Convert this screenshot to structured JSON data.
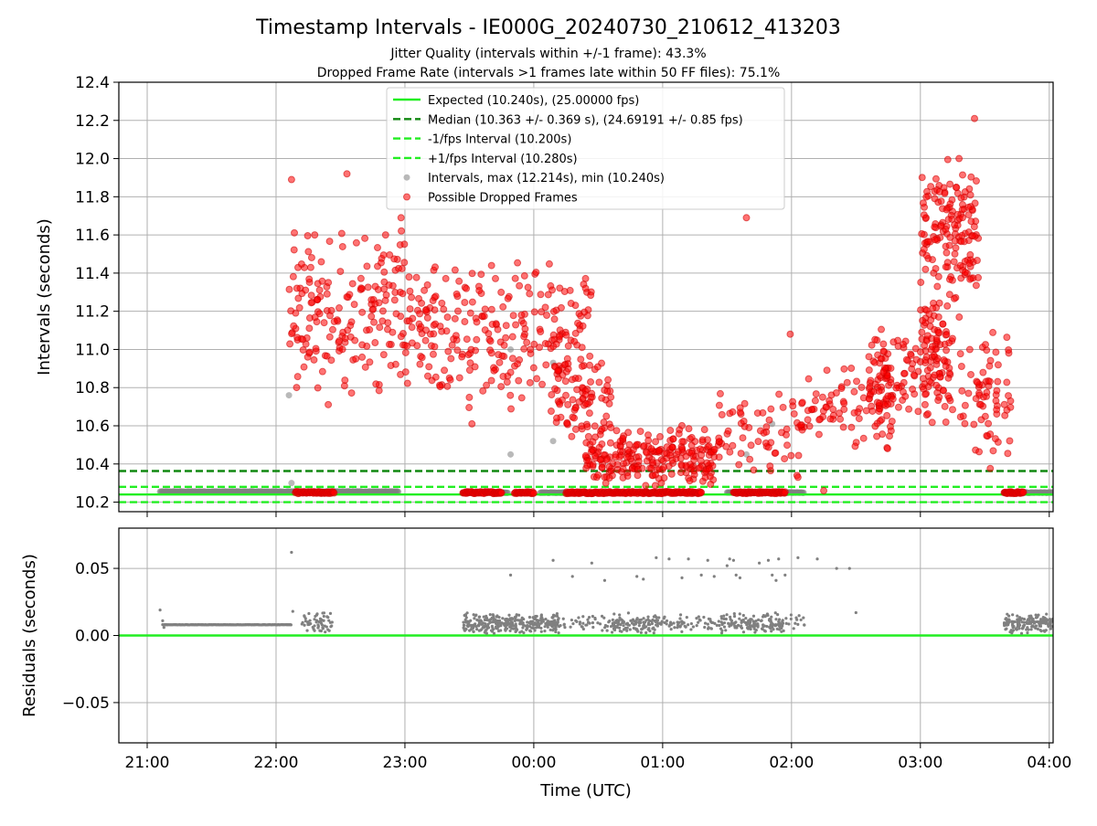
{
  "title": "Timestamp Intervals - IE000G_20240730_210612_413203",
  "subtitle_1": "Jitter Quality (intervals within +/-1 frame): 43.3%",
  "subtitle_2": "Dropped Frame Rate (intervals >1 frames late within 50 FF files): 75.1%",
  "colors": {
    "expected": "#22ee22",
    "median": "#118811",
    "interval_points": "#808080",
    "dropped_points": "#ff0000",
    "grid": "#b0b0b0"
  },
  "chart_data": [
    {
      "type": "scatter",
      "panel": "top",
      "xlabel": "",
      "ylabel": "Intervals (seconds)",
      "x_unit": "hours after 21:00 UTC",
      "xlim": [
        -0.22,
        7.03
      ],
      "ylim": [
        10.15,
        12.4
      ],
      "yticks": [
        "10.2",
        "10.4",
        "10.6",
        "10.8",
        "11.0",
        "11.2",
        "11.4",
        "11.6",
        "11.8",
        "12.0",
        "12.2",
        "12.4"
      ],
      "grid": true,
      "legend_position": "top-center",
      "reference_lines": [
        {
          "name": "Expected (10.240s), (25.00000 fps)",
          "y": 10.24,
          "style": "solid",
          "color": "#22ee22"
        },
        {
          "name": "Median (10.363 +/- 0.369 s), (24.69191 +/- 0.85 fps)",
          "y": 10.363,
          "style": "dashed",
          "color": "#118811"
        },
        {
          "name": "-1/fps Interval (10.200s)",
          "y": 10.2,
          "style": "dashed",
          "color": "#22ee22"
        },
        {
          "name": "+1/fps Interval (10.280s)",
          "y": 10.28,
          "style": "dashed",
          "color": "#22ee22"
        }
      ],
      "series": [
        {
          "name": "Intervals, max (12.214s), min (10.240s)",
          "color": "#808080",
          "baseline_segments": [
            {
              "x_start": 0.1,
              "x_end": 1.95,
              "y": 10.255
            },
            {
              "x_start": 2.45,
              "x_end": 2.8,
              "y": 10.25
            },
            {
              "x_start": 3.05,
              "x_end": 3.4,
              "y": 10.25
            },
            {
              "x_start": 4.5,
              "x_end": 5.1,
              "y": 10.25
            },
            {
              "x_start": 6.65,
              "x_end": 7.03,
              "y": 10.25
            }
          ],
          "points": [
            [
              1.1,
              10.76
            ],
            [
              1.12,
              10.3
            ],
            [
              2.82,
              11.0
            ],
            [
              2.82,
              10.45
            ],
            [
              3.15,
              10.93
            ],
            [
              3.15,
              10.52
            ],
            [
              4.65,
              10.45
            ],
            [
              4.85,
              10.61
            ]
          ]
        },
        {
          "name": "Possible Dropped Frames",
          "color": "#ff0000",
          "clusters": [
            {
              "x_start": 1.1,
              "x_end": 2.0,
              "y_min": 10.7,
              "y_max": 11.7,
              "n": 180
            },
            {
              "x_start": 2.0,
              "x_end": 3.45,
              "y_min": 10.65,
              "y_max": 11.5,
              "n": 260
            },
            {
              "x_start": 3.15,
              "x_end": 3.6,
              "y_min": 10.45,
              "y_max": 10.98,
              "n": 70
            },
            {
              "x_start": 3.4,
              "x_end": 4.4,
              "y_min": 10.25,
              "y_max": 10.62,
              "n": 240
            },
            {
              "x_start": 4.4,
              "x_end": 5.1,
              "y_min": 10.3,
              "y_max": 10.82,
              "n": 70
            },
            {
              "x_start": 5.1,
              "x_end": 5.8,
              "y_min": 10.45,
              "y_max": 10.95,
              "n": 80
            },
            {
              "x_start": 5.6,
              "x_end": 6.25,
              "y_min": 10.6,
              "y_max": 11.15,
              "n": 150
            },
            {
              "x_start": 6.0,
              "x_end": 6.25,
              "y_min": 10.9,
              "y_max": 11.3,
              "n": 40
            },
            {
              "x_start": 6.0,
              "x_end": 6.45,
              "y_min": 11.2,
              "y_max": 12.05,
              "n": 150
            },
            {
              "x_start": 6.3,
              "x_end": 6.7,
              "y_min": 10.35,
              "y_max": 11.2,
              "n": 70
            }
          ],
          "baseline_bands": [
            {
              "x_start": 1.15,
              "x_end": 1.45,
              "y": 10.25
            },
            {
              "x_start": 2.45,
              "x_end": 2.75,
              "y": 10.25
            },
            {
              "x_start": 2.85,
              "x_end": 3.0,
              "y": 10.25
            },
            {
              "x_start": 3.25,
              "x_end": 4.3,
              "y": 10.25
            },
            {
              "x_start": 4.55,
              "x_end": 4.95,
              "y": 10.25
            },
            {
              "x_start": 6.65,
              "x_end": 6.8,
              "y": 10.25
            }
          ],
          "points": [
            [
              1.12,
              11.89
            ],
            [
              1.3,
              11.6
            ],
            [
              1.55,
              11.92
            ],
            [
              1.85,
              11.6
            ],
            [
              1.97,
              11.69
            ],
            [
              2.52,
              10.61
            ],
            [
              4.65,
              11.69
            ],
            [
              6.42,
              12.21
            ],
            [
              6.3,
              12.0
            ],
            [
              4.99,
              11.08
            ],
            [
              5.05,
              10.33
            ],
            [
              5.25,
              10.26
            ]
          ]
        }
      ]
    },
    {
      "type": "scatter",
      "panel": "bottom",
      "xlabel": "Time (UTC)",
      "ylabel": "Residuals (seconds)",
      "x_unit": "hours after 21:00 UTC",
      "xlim": [
        -0.22,
        7.03
      ],
      "ylim": [
        -0.08,
        0.08
      ],
      "yticks": [
        "−0.05",
        "0.00",
        "0.05"
      ],
      "xticks": [
        "21:00",
        "22:00",
        "23:00",
        "00:00",
        "01:00",
        "02:00",
        "03:00",
        "04:00"
      ],
      "grid": true,
      "reference_lines": [
        {
          "y": 0.0,
          "style": "solid",
          "color": "#22ee22"
        }
      ],
      "series": [
        {
          "color": "#808080",
          "baseline_segments": [
            {
              "x_start": 0.12,
              "x_end": 1.12,
              "y": 0.008
            }
          ],
          "clusters": [
            {
              "x_start": 1.2,
              "x_end": 1.45,
              "y_min": 0.002,
              "y_max": 0.018,
              "n": 60
            },
            {
              "x_start": 2.45,
              "x_end": 3.2,
              "y_min": 0.001,
              "y_max": 0.017,
              "n": 320
            },
            {
              "x_start": 3.2,
              "x_end": 3.6,
              "y_min": 0.002,
              "y_max": 0.016,
              "n": 40
            },
            {
              "x_start": 3.6,
              "x_end": 4.0,
              "y_min": 0.001,
              "y_max": 0.017,
              "n": 120
            },
            {
              "x_start": 4.0,
              "x_end": 4.45,
              "y_min": 0.002,
              "y_max": 0.017,
              "n": 60
            },
            {
              "x_start": 4.45,
              "x_end": 4.95,
              "y_min": 0.001,
              "y_max": 0.017,
              "n": 160
            },
            {
              "x_start": 4.95,
              "x_end": 5.1,
              "y_min": 0.003,
              "y_max": 0.016,
              "n": 15
            },
            {
              "x_start": 6.65,
              "x_end": 7.03,
              "y_min": 0.001,
              "y_max": 0.017,
              "n": 170
            }
          ],
          "points": [
            [
              0.1,
              0.019
            ],
            [
              0.12,
              0.011
            ],
            [
              0.13,
              0.006
            ],
            [
              1.12,
              0.062
            ],
            [
              1.13,
              0.018
            ],
            [
              2.82,
              0.045
            ],
            [
              3.15,
              0.056
            ],
            [
              3.3,
              0.044
            ],
            [
              3.45,
              0.054
            ],
            [
              3.55,
              0.041
            ],
            [
              3.8,
              0.044
            ],
            [
              3.85,
              0.042
            ],
            [
              3.95,
              0.058
            ],
            [
              4.05,
              0.057
            ],
            [
              4.15,
              0.043
            ],
            [
              4.2,
              0.057
            ],
            [
              4.3,
              0.045
            ],
            [
              4.35,
              0.056
            ],
            [
              4.4,
              0.044
            ],
            [
              4.5,
              0.052
            ],
            [
              4.52,
              0.057
            ],
            [
              4.55,
              0.056
            ],
            [
              4.57,
              0.045
            ],
            [
              4.6,
              0.043
            ],
            [
              4.75,
              0.054
            ],
            [
              4.82,
              0.056
            ],
            [
              4.85,
              0.045
            ],
            [
              4.9,
              0.057
            ],
            [
              4.88,
              0.041
            ],
            [
              5.05,
              0.058
            ],
            [
              5.35,
              0.05
            ],
            [
              5.45,
              0.05
            ],
            [
              5.5,
              0.017
            ],
            [
              5.2,
              0.057
            ],
            [
              4.95,
              0.045
            ]
          ]
        }
      ]
    }
  ]
}
